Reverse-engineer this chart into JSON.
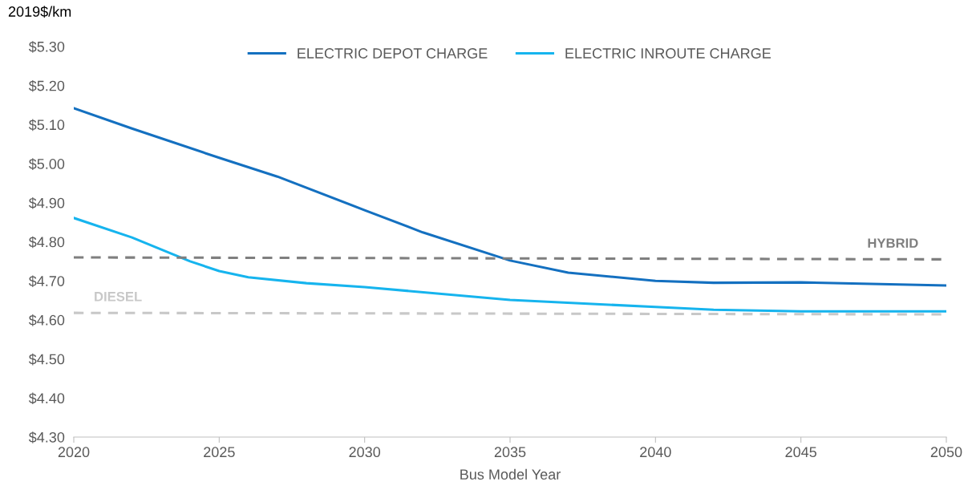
{
  "chart_data": {
    "type": "line",
    "ylabel": "2019$/km",
    "xlabel": "Bus Model Year",
    "series": [
      {
        "name": "ELECTRIC DEPOT CHARGE",
        "color": "#1470c0",
        "line_style": "solid",
        "x": [
          2020,
          2022,
          2025,
          2027,
          2030,
          2032,
          2035,
          2037,
          2040,
          2042,
          2045,
          2050
        ],
        "values": [
          5.142,
          5.09,
          5.015,
          4.967,
          4.881,
          4.824,
          4.752,
          4.721,
          4.7,
          4.695,
          4.696,
          4.688
        ]
      },
      {
        "name": "ELECTRIC INROUTE CHARGE",
        "color": "#16b4ee",
        "line_style": "solid",
        "x": [
          2020,
          2022,
          2024,
          2025,
          2026,
          2028,
          2030,
          2035,
          2040,
          2042,
          2045,
          2050
        ],
        "values": [
          4.861,
          4.811,
          4.75,
          4.725,
          4.709,
          4.694,
          4.684,
          4.651,
          4.633,
          4.626,
          4.622,
          4.622
        ]
      },
      {
        "name": "HYBRID",
        "color": "#7f7f7f",
        "line_style": "dashed",
        "x": [
          2020,
          2050
        ],
        "values": [
          4.76,
          4.755
        ]
      },
      {
        "name": "DIESEL",
        "color": "#c8c8c8",
        "line_style": "dashed",
        "x": [
          2020,
          2050
        ],
        "values": [
          4.618,
          4.614
        ]
      }
    ],
    "xlim": [
      2020,
      2050
    ],
    "xticks": [
      2020,
      2025,
      2030,
      2035,
      2040,
      2045,
      2050
    ],
    "ylim": [
      4.3,
      5.3
    ],
    "yticks": [
      {
        "value": 4.3,
        "label": "$4.30"
      },
      {
        "value": 4.4,
        "label": "$4.40"
      },
      {
        "value": 4.5,
        "label": "$4.50"
      },
      {
        "value": 4.6,
        "label": "$4.60"
      },
      {
        "value": 4.7,
        "label": "$4.70"
      },
      {
        "value": 4.8,
        "label": "$4.80"
      },
      {
        "value": 4.9,
        "label": "$4.90"
      },
      {
        "value": 5.0,
        "label": "$5.00"
      },
      {
        "value": 5.1,
        "label": "$5.10"
      },
      {
        "value": 5.2,
        "label": "$5.20"
      },
      {
        "value": 5.3,
        "label": "$5.30"
      }
    ],
    "grid": false,
    "legend": "top",
    "marker": "none"
  }
}
